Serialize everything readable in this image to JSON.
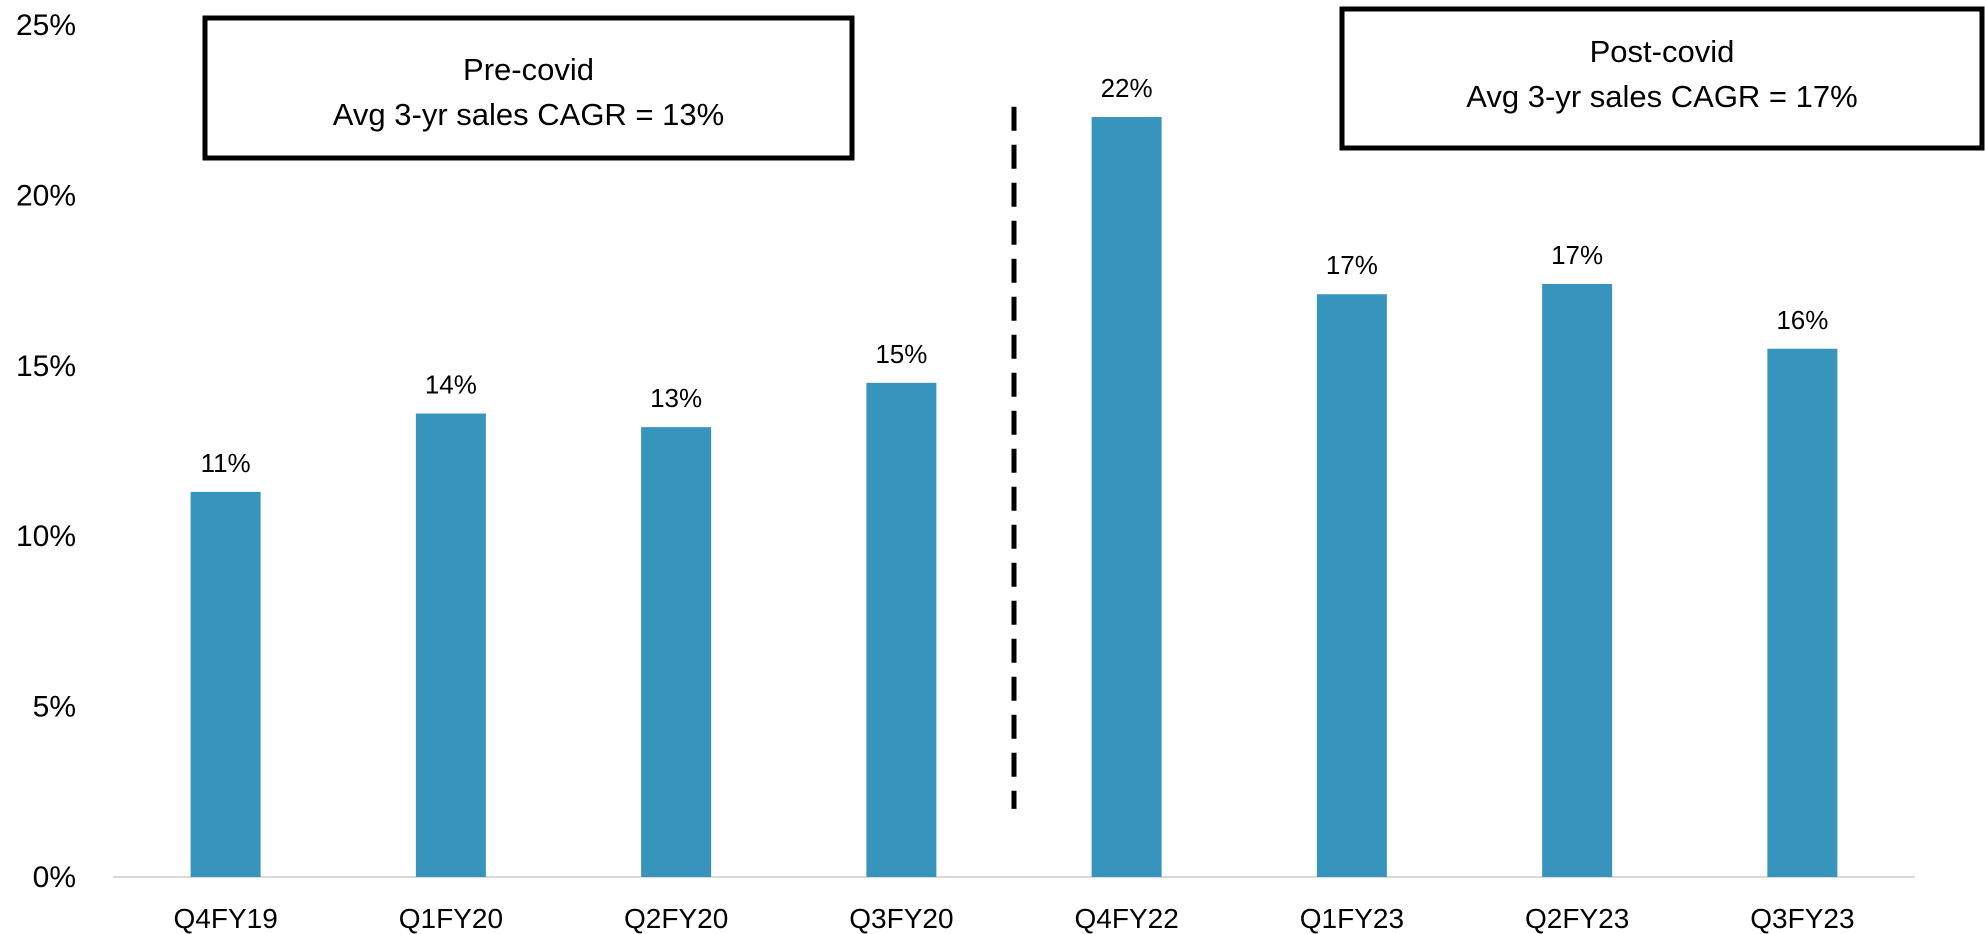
{
  "chart_data": {
    "type": "bar",
    "categories": [
      "Q4FY19",
      "Q1FY20",
      "Q2FY20",
      "Q3FY20",
      "Q4FY22",
      "Q1FY23",
      "Q2FY23",
      "Q3FY23"
    ],
    "values": [
      11.3,
      13.6,
      13.2,
      14.5,
      22.3,
      17.1,
      17.4,
      15.5
    ],
    "data_labels": [
      "11%",
      "14%",
      "13%",
      "15%",
      "22%",
      "17%",
      "17%",
      "16%"
    ],
    "title": "",
    "xlabel": "",
    "ylabel": "",
    "ylim": [
      0,
      25
    ],
    "yticks": [
      0,
      5,
      10,
      15,
      20,
      25
    ],
    "ytick_labels": [
      "0%",
      "5%",
      "10%",
      "15%",
      "20%",
      "25%"
    ],
    "grid": false,
    "legend": "none",
    "bar_color": "#3795BD",
    "divider": {
      "after_category_index": 3,
      "style": "dashed",
      "y_from": 2,
      "y_to": 22.6
    },
    "annotations": [
      {
        "lines": [
          "Pre-covid",
          "Avg 3-yr sales CAGR = 13%"
        ],
        "side": "left"
      },
      {
        "lines": [
          "Post-covid",
          "Avg 3-yr sales CAGR = 17%"
        ],
        "side": "right"
      }
    ]
  }
}
